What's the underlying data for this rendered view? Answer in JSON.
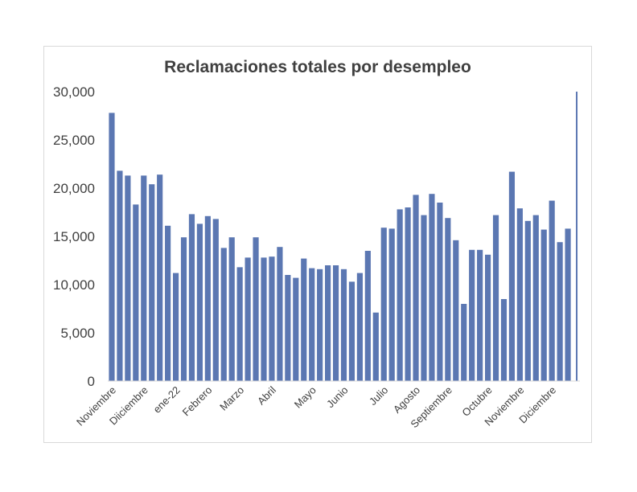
{
  "chart_data": {
    "type": "bar",
    "title": "Reclamaciones totales por desempleo",
    "xlabel": "",
    "ylabel": "",
    "ylim": [
      0,
      30000
    ],
    "yticks": [
      "0",
      "5,000",
      "10,000",
      "15,000",
      "20,000",
      "25,000",
      "30,000"
    ],
    "grid": false,
    "legend": "none",
    "bar_color": "#5b77b2",
    "month_labels": [
      {
        "label": "Noviembre",
        "bar_index": 0
      },
      {
        "label": "Diiciembre",
        "bar_index": 4
      },
      {
        "label": "ene-22",
        "bar_index": 8
      },
      {
        "label": "Febrero",
        "bar_index": 12
      },
      {
        "label": "Marzo",
        "bar_index": 16
      },
      {
        "label": "Abril",
        "bar_index": 20
      },
      {
        "label": "Mayo",
        "bar_index": 25
      },
      {
        "label": "Junio",
        "bar_index": 29
      },
      {
        "label": "Julio",
        "bar_index": 34
      },
      {
        "label": "Agosto",
        "bar_index": 38
      },
      {
        "label": "Septiembre",
        "bar_index": 42
      },
      {
        "label": "Octubre",
        "bar_index": 47
      },
      {
        "label": "Noviembre",
        "bar_index": 51
      },
      {
        "label": "Diciembre",
        "bar_index": 55
      }
    ],
    "values": [
      27800,
      21800,
      21300,
      18300,
      21300,
      20400,
      21400,
      16100,
      11200,
      14900,
      17300,
      16300,
      17100,
      16800,
      13800,
      14900,
      11800,
      12800,
      14900,
      12800,
      12900,
      13900,
      11000,
      10700,
      12700,
      11700,
      11600,
      12000,
      12000,
      11600,
      10300,
      11200,
      13500,
      7100,
      15900,
      15800,
      17800,
      18000,
      19300,
      17200,
      19400,
      18500,
      16900,
      14600,
      8000,
      13600,
      13600,
      13100,
      17200,
      8500,
      21700,
      17900,
      16600,
      17200,
      15700,
      18700,
      14400,
      15800,
      30000
    ]
  }
}
